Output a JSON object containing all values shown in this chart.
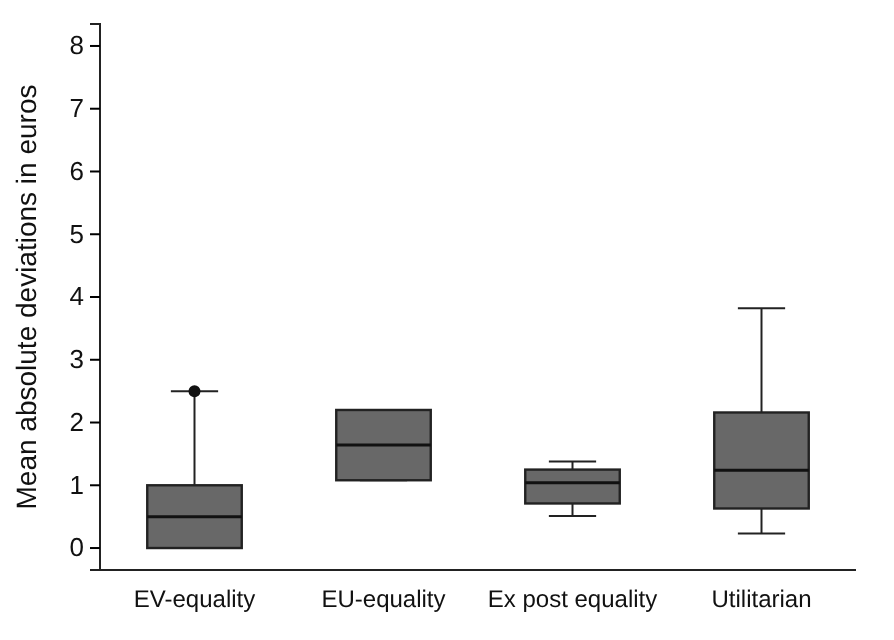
{
  "chart_data": {
    "type": "box",
    "ylabel": "Mean absolute deviations in euros",
    "categories": [
      "EV-equality",
      "EU-equality",
      "Ex post equality",
      "Utilitarian"
    ],
    "boxes": [
      {
        "low": 0,
        "q1": 0,
        "median": 0.5,
        "q3": 1.0,
        "high": 2.5,
        "outliers": [
          2.5
        ]
      },
      {
        "low": 1.08,
        "q1": 1.08,
        "median": 1.64,
        "q3": 2.2,
        "high": 2.2
      },
      {
        "low": 0.51,
        "q1": 0.71,
        "median": 1.04,
        "q3": 1.25,
        "high": 1.38
      },
      {
        "low": 0.23,
        "q1": 0.63,
        "median": 1.24,
        "q3": 2.16,
        "high": 3.82
      }
    ],
    "color": "#686868",
    "ylim": [
      -0.35,
      8.35
    ],
    "yticks": [
      0,
      1,
      2,
      3,
      4,
      5,
      6,
      7,
      8
    ],
    "grid": false
  }
}
